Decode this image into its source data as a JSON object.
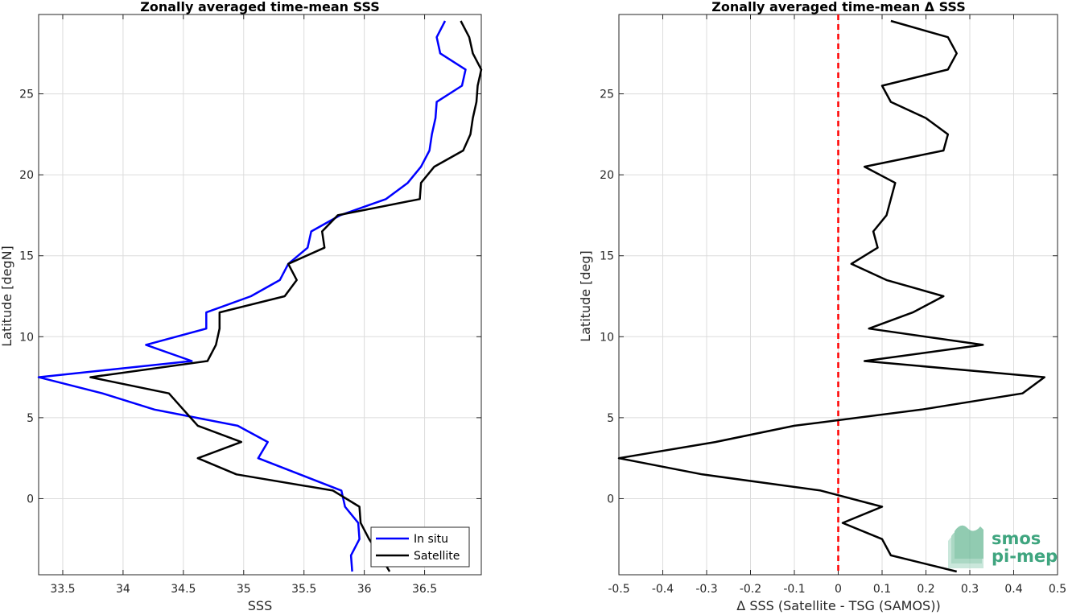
{
  "chart_data": [
    {
      "type": "line",
      "title": "Zonally averaged time-mean SSS",
      "xlabel": "SSS",
      "ylabel": "Latitude [degN]",
      "xlim": [
        33.3,
        36.97
      ],
      "ylim": [
        -4.7,
        29.9
      ],
      "xticks": [
        33.5,
        34,
        34.5,
        35,
        35.5,
        36,
        36.5
      ],
      "xtick_labels": [
        "33.5",
        "34",
        "34.5",
        "35",
        "35.5",
        "36",
        "36.5"
      ],
      "yticks": [
        0,
        5,
        10,
        15,
        20,
        25
      ],
      "ytick_labels": [
        "0",
        "5",
        "10",
        "15",
        "20",
        "25"
      ],
      "grid": true,
      "legend": "bottom-right",
      "series": [
        {
          "name": "In situ",
          "color": "#0000ff",
          "points": [
            [
              35.9,
              -4.5
            ],
            [
              35.89,
              -3.5
            ],
            [
              35.96,
              -2.5
            ],
            [
              35.95,
              -1.5
            ],
            [
              35.84,
              -0.5
            ],
            [
              35.81,
              0.5
            ],
            [
              35.12,
              2.5
            ],
            [
              35.2,
              3.5
            ],
            [
              34.95,
              4.5
            ],
            [
              34.26,
              5.5
            ],
            [
              33.83,
              6.5
            ],
            [
              33.3,
              7.5
            ],
            [
              34.57,
              8.5
            ],
            [
              34.19,
              9.5
            ],
            [
              34.69,
              10.5
            ],
            [
              34.69,
              11.5
            ],
            [
              35.06,
              12.5
            ],
            [
              35.3,
              13.5
            ],
            [
              35.37,
              14.5
            ],
            [
              35.53,
              15.5
            ],
            [
              35.56,
              16.5
            ],
            [
              35.8,
              17.5
            ],
            [
              36.18,
              18.5
            ],
            [
              36.36,
              19.5
            ],
            [
              36.47,
              20.5
            ],
            [
              36.54,
              21.5
            ],
            [
              36.56,
              22.5
            ],
            [
              36.59,
              23.5
            ],
            [
              36.6,
              24.5
            ],
            [
              36.81,
              25.5
            ],
            [
              36.84,
              26.5
            ],
            [
              36.63,
              27.5
            ],
            [
              36.6,
              28.5
            ],
            [
              36.67,
              29.5
            ]
          ]
        },
        {
          "name": "Satellite",
          "color": "#000000",
          "points": [
            [
              36.21,
              -4.5
            ],
            [
              36.13,
              -3.5
            ],
            [
              36.04,
              -2.5
            ],
            [
              35.97,
              -1.5
            ],
            [
              35.96,
              -0.5
            ],
            [
              35.74,
              0.5
            ],
            [
              34.94,
              1.5
            ],
            [
              34.62,
              2.5
            ],
            [
              34.98,
              3.5
            ],
            [
              34.62,
              4.5
            ],
            [
              34.5,
              5.5
            ],
            [
              34.38,
              6.5
            ],
            [
              33.73,
              7.5
            ],
            [
              34.7,
              8.5
            ],
            [
              34.77,
              9.5
            ],
            [
              34.8,
              10.5
            ],
            [
              34.8,
              11.5
            ],
            [
              35.34,
              12.5
            ],
            [
              35.44,
              13.5
            ],
            [
              35.37,
              14.5
            ],
            [
              35.67,
              15.5
            ],
            [
              35.65,
              16.5
            ],
            [
              35.78,
              17.5
            ],
            [
              36.46,
              18.5
            ],
            [
              36.47,
              19.5
            ],
            [
              36.58,
              20.5
            ],
            [
              36.82,
              21.5
            ],
            [
              36.88,
              22.5
            ],
            [
              36.9,
              23.5
            ],
            [
              36.93,
              24.5
            ],
            [
              36.94,
              25.5
            ],
            [
              36.98,
              26.5
            ],
            [
              36.9,
              27.5
            ],
            [
              36.87,
              28.5
            ],
            [
              36.8,
              29.5
            ]
          ]
        }
      ]
    },
    {
      "type": "line",
      "title": "Zonally averaged time-mean Δ SSS",
      "xlabel": "Δ SSS (Satellite - TSG (SAMOS))",
      "ylabel": "Latitude [deg]",
      "xlim": [
        -0.5,
        0.5
      ],
      "ylim": [
        -4.7,
        29.9
      ],
      "xticks": [
        -0.5,
        -0.4,
        -0.3,
        -0.2,
        -0.1,
        0,
        0.1,
        0.2,
        0.3,
        0.4,
        0.5
      ],
      "xtick_labels": [
        "-0.5",
        "-0.4",
        "-0.3",
        "-0.2",
        "-0.1",
        "0",
        "0.1",
        "0.2",
        "0.3",
        "0.4",
        "0.5"
      ],
      "yticks": [
        0,
        5,
        10,
        15,
        20,
        25
      ],
      "ytick_labels": [
        "0",
        "5",
        "10",
        "15",
        "20",
        "25"
      ],
      "grid": true,
      "reference_line": {
        "x": 0,
        "color": "#ff0000",
        "style": "dashed"
      },
      "series": [
        {
          "color": "#000000",
          "points": [
            [
              0.27,
              -4.5
            ],
            [
              0.12,
              -3.5
            ],
            [
              0.1,
              -2.5
            ],
            [
              0.01,
              -1.5
            ],
            [
              0.1,
              -0.5
            ],
            [
              -0.04,
              0.5
            ],
            [
              -0.31,
              1.5
            ],
            [
              -0.5,
              2.5
            ],
            [
              -0.28,
              3.5
            ],
            [
              -0.1,
              4.5
            ],
            [
              0.19,
              5.5
            ],
            [
              0.42,
              6.5
            ],
            [
              0.47,
              7.5
            ],
            [
              0.06,
              8.5
            ],
            [
              0.33,
              9.5
            ],
            [
              0.07,
              10.5
            ],
            [
              0.17,
              11.5
            ],
            [
              0.24,
              12.5
            ],
            [
              0.11,
              13.5
            ],
            [
              0.03,
              14.5
            ],
            [
              0.09,
              15.5
            ],
            [
              0.08,
              16.5
            ],
            [
              0.11,
              17.5
            ],
            [
              0.12,
              18.5
            ],
            [
              0.13,
              19.5
            ],
            [
              0.06,
              20.5
            ],
            [
              0.24,
              21.5
            ],
            [
              0.25,
              22.5
            ],
            [
              0.2,
              23.5
            ],
            [
              0.12,
              24.5
            ],
            [
              0.1,
              25.5
            ],
            [
              0.25,
              26.5
            ],
            [
              0.27,
              27.5
            ],
            [
              0.25,
              28.5
            ],
            [
              0.12,
              29.5
            ]
          ]
        }
      ]
    }
  ],
  "logo": {
    "line1": "smos",
    "line2": "pi-mep",
    "color": "#3fa57f"
  }
}
